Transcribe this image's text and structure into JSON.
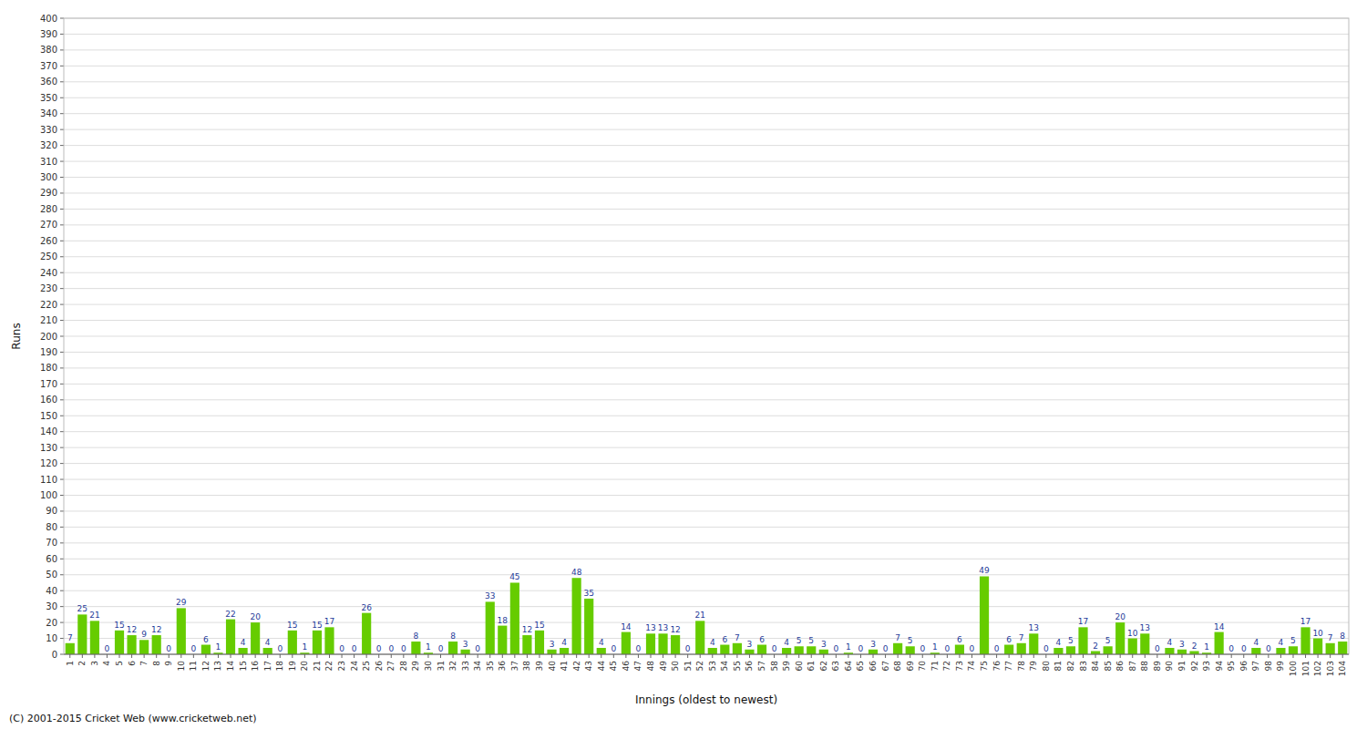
{
  "chart_data": {
    "type": "bar",
    "xlabel": "Innings (oldest to newest)",
    "ylabel": "Runs",
    "annotations": [
      "(C) 2001-2015 Cricket Web (www.cricketweb.net)"
    ],
    "categories": [
      "1",
      "2",
      "3",
      "4",
      "5",
      "6",
      "7",
      "8",
      "9",
      "10",
      "11",
      "12",
      "13",
      "14",
      "15",
      "16",
      "17",
      "18",
      "19",
      "20",
      "21",
      "22",
      "23",
      "24",
      "25",
      "26",
      "27",
      "28",
      "29",
      "30",
      "31",
      "32",
      "33",
      "34",
      "35",
      "36",
      "37",
      "38",
      "39",
      "40",
      "41",
      "42",
      "43",
      "44",
      "45",
      "46",
      "47",
      "48",
      "49",
      "50",
      "51",
      "52",
      "53",
      "54",
      "55",
      "56",
      "57",
      "58",
      "59",
      "60",
      "61",
      "62",
      "63",
      "64",
      "65",
      "66",
      "67",
      "68",
      "69",
      "70",
      "71",
      "72",
      "73",
      "74",
      "75",
      "76",
      "77",
      "78",
      "79",
      "80",
      "81",
      "82",
      "83",
      "84",
      "85",
      "86",
      "87",
      "88",
      "89",
      "90",
      "91",
      "92",
      "93",
      "94",
      "95",
      "96",
      "97",
      "98",
      "99",
      "100",
      "101",
      "102",
      "103",
      "104"
    ],
    "values": [
      7,
      25,
      21,
      0,
      15,
      12,
      9,
      12,
      0,
      29,
      0,
      6,
      1,
      22,
      4,
      20,
      4,
      0,
      15,
      1,
      15,
      17,
      0,
      0,
      26,
      0,
      0,
      0,
      8,
      1,
      0,
      8,
      3,
      0,
      33,
      18,
      45,
      12,
      15,
      3,
      4,
      48,
      35,
      4,
      0,
      14,
      0,
      13,
      13,
      12,
      0,
      21,
      4,
      6,
      7,
      3,
      6,
      0,
      4,
      5,
      5,
      3,
      0,
      1,
      0,
      3,
      0,
      7,
      5,
      0,
      1,
      0,
      6,
      0,
      49,
      0,
      6,
      7,
      13,
      0,
      4,
      5,
      17,
      2,
      5,
      20,
      10,
      13,
      0,
      4,
      3,
      2,
      1,
      14,
      0,
      0,
      4,
      0,
      4,
      5,
      17,
      10,
      7,
      8
    ],
    "color": "#66cc00",
    "ylim": [
      0,
      400
    ],
    "yticks": [
      0,
      10,
      20,
      30,
      40,
      50,
      60,
      70,
      80,
      90,
      100,
      110,
      120,
      130,
      140,
      150,
      160,
      170,
      180,
      190,
      200,
      210,
      220,
      230,
      240,
      250,
      260,
      270,
      280,
      290,
      300,
      310,
      320,
      330,
      340,
      350,
      360,
      370,
      380,
      390,
      400
    ],
    "grid": true,
    "data_labels": true
  }
}
